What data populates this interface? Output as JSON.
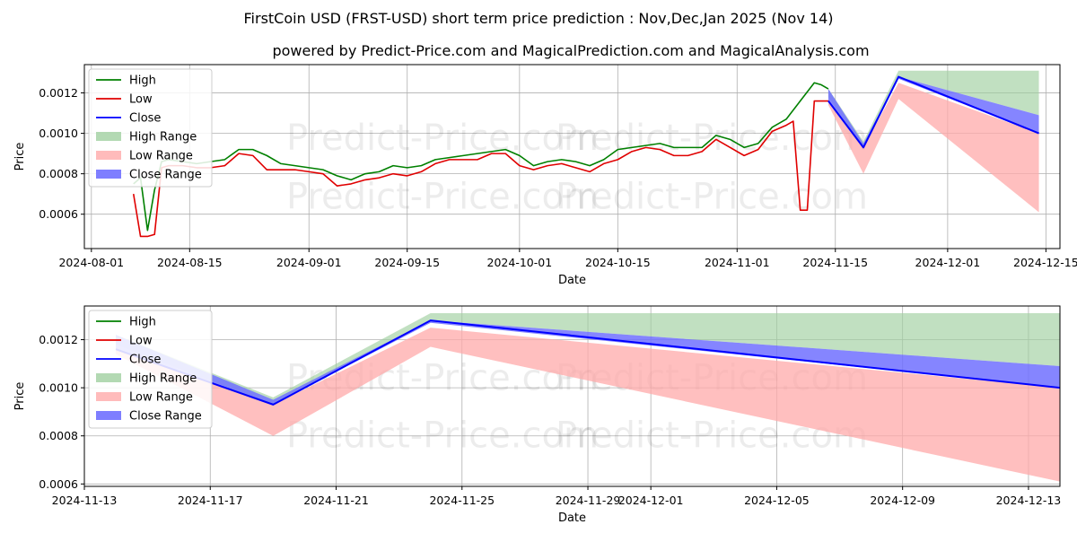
{
  "title": "FirstCoin USD (FRST-USD) short term price prediction : Nov,Dec,Jan 2025 (Nov 14)",
  "subtitle": "powered by Predict-Price.com and MagicalPrediction.com and MagicalAnalysis.com",
  "watermark": "Predict-Price.com",
  "colors": {
    "high": "#008000",
    "low": "#e00000",
    "close": "#0000ff",
    "high_range": "#a0d0a0",
    "low_range": "#ffaaaa",
    "close_range": "#7070ff"
  },
  "chart_data": [
    {
      "type": "line",
      "name": "history-and-forecast",
      "xlabel": "Date",
      "ylabel": "Price",
      "xlim": [
        "2024-07-31",
        "2024-12-17"
      ],
      "ylim": [
        0.00043,
        0.00134
      ],
      "xticks": [
        "2024-08-01",
        "2024-08-15",
        "2024-09-01",
        "2024-09-15",
        "2024-10-01",
        "2024-10-15",
        "2024-11-01",
        "2024-11-15",
        "2024-12-01",
        "2024-12-15"
      ],
      "yticks": [
        0.0006,
        0.0008,
        0.001,
        0.0012
      ],
      "legend": [
        "High",
        "Low",
        "Close",
        "High Range",
        "Low Range",
        "Close Range"
      ],
      "legend_position": "upper-left",
      "grid": true,
      "series": [
        {
          "name": "High",
          "x": [
            "2024-08-07",
            "2024-08-08",
            "2024-08-09",
            "2024-08-10",
            "2024-08-11",
            "2024-08-12",
            "2024-08-14",
            "2024-08-16",
            "2024-08-18",
            "2024-08-20",
            "2024-08-22",
            "2024-08-24",
            "2024-08-26",
            "2024-08-28",
            "2024-08-30",
            "2024-09-01",
            "2024-09-03",
            "2024-09-05",
            "2024-09-07",
            "2024-09-09",
            "2024-09-11",
            "2024-09-13",
            "2024-09-15",
            "2024-09-17",
            "2024-09-19",
            "2024-09-21",
            "2024-09-23",
            "2024-09-25",
            "2024-09-27",
            "2024-09-29",
            "2024-10-01",
            "2024-10-03",
            "2024-10-05",
            "2024-10-07",
            "2024-10-09",
            "2024-10-11",
            "2024-10-13",
            "2024-10-15",
            "2024-10-17",
            "2024-10-19",
            "2024-10-21",
            "2024-10-23",
            "2024-10-25",
            "2024-10-27",
            "2024-10-29",
            "2024-10-31",
            "2024-11-02",
            "2024-11-04",
            "2024-11-06",
            "2024-11-08",
            "2024-11-10",
            "2024-11-12",
            "2024-11-13",
            "2024-11-14"
          ],
          "values": [
            0.00075,
            0.00078,
            0.00052,
            0.00072,
            0.00086,
            0.00087,
            0.00086,
            0.00085,
            0.00086,
            0.00087,
            0.00092,
            0.00092,
            0.00089,
            0.00085,
            0.00084,
            0.00083,
            0.00082,
            0.00079,
            0.00077,
            0.0008,
            0.00081,
            0.00084,
            0.00083,
            0.00084,
            0.00087,
            0.00088,
            0.00089,
            0.0009,
            0.00091,
            0.00092,
            0.00089,
            0.00084,
            0.00086,
            0.00087,
            0.00086,
            0.00084,
            0.00087,
            0.00092,
            0.00093,
            0.00094,
            0.00095,
            0.00093,
            0.00093,
            0.00093,
            0.00099,
            0.00097,
            0.00093,
            0.00095,
            0.00103,
            0.00107,
            0.00116,
            0.00125,
            0.00124,
            0.00122
          ]
        },
        {
          "name": "Low",
          "x": [
            "2024-08-07",
            "2024-08-08",
            "2024-08-09",
            "2024-08-10",
            "2024-08-11",
            "2024-08-12",
            "2024-08-14",
            "2024-08-16",
            "2024-08-18",
            "2024-08-20",
            "2024-08-22",
            "2024-08-24",
            "2024-08-26",
            "2024-08-28",
            "2024-08-30",
            "2024-09-01",
            "2024-09-03",
            "2024-09-05",
            "2024-09-07",
            "2024-09-09",
            "2024-09-11",
            "2024-09-13",
            "2024-09-15",
            "2024-09-17",
            "2024-09-19",
            "2024-09-21",
            "2024-09-23",
            "2024-09-25",
            "2024-09-27",
            "2024-09-29",
            "2024-10-01",
            "2024-10-03",
            "2024-10-05",
            "2024-10-07",
            "2024-10-09",
            "2024-10-11",
            "2024-10-13",
            "2024-10-15",
            "2024-10-17",
            "2024-10-19",
            "2024-10-21",
            "2024-10-23",
            "2024-10-25",
            "2024-10-27",
            "2024-10-29",
            "2024-10-31",
            "2024-11-02",
            "2024-11-04",
            "2024-11-06",
            "2024-11-08",
            "2024-11-09",
            "2024-11-10",
            "2024-11-11",
            "2024-11-12",
            "2024-11-13",
            "2024-11-14"
          ],
          "values": [
            0.0007,
            0.00049,
            0.00049,
            0.0005,
            0.00083,
            0.00084,
            0.00084,
            0.00083,
            0.00083,
            0.00084,
            0.0009,
            0.00089,
            0.00082,
            0.00082,
            0.00082,
            0.00081,
            0.0008,
            0.00074,
            0.00075,
            0.00077,
            0.00078,
            0.0008,
            0.00079,
            0.00081,
            0.00085,
            0.00087,
            0.00087,
            0.00087,
            0.0009,
            0.0009,
            0.00084,
            0.00082,
            0.00084,
            0.00085,
            0.00083,
            0.00081,
            0.00085,
            0.00087,
            0.00091,
            0.00093,
            0.00092,
            0.00089,
            0.00089,
            0.00091,
            0.00097,
            0.00093,
            0.00089,
            0.00092,
            0.00101,
            0.00104,
            0.00106,
            0.00062,
            0.00062,
            0.00116,
            0.00116,
            0.00116
          ]
        },
        {
          "name": "Close",
          "x": [
            "2024-11-14",
            "2024-11-19",
            "2024-11-24",
            "2024-12-14"
          ],
          "values": [
            0.00116,
            0.00093,
            0.00128,
            0.001
          ]
        }
      ],
      "ranges": [
        {
          "name": "High Range",
          "x": [
            "2024-11-14",
            "2024-11-19",
            "2024-11-24",
            "2024-12-14"
          ],
          "upper": [
            0.00122,
            0.00096,
            0.00131,
            0.00131
          ],
          "lower": [
            0.00118,
            0.00093,
            0.00128,
            0.00109
          ]
        },
        {
          "name": "Low Range",
          "x": [
            "2024-11-14",
            "2024-11-19",
            "2024-11-24",
            "2024-12-14"
          ],
          "upper": [
            0.00116,
            0.00093,
            0.00125,
            0.001
          ],
          "lower": [
            0.00114,
            0.0008,
            0.00117,
            0.00061
          ]
        },
        {
          "name": "Close Range",
          "x": [
            "2024-11-14",
            "2024-11-19",
            "2024-11-24",
            "2024-12-14"
          ],
          "upper": [
            0.00122,
            0.00095,
            0.00128,
            0.00109
          ],
          "lower": [
            0.00116,
            0.00093,
            0.00127,
            0.001
          ]
        }
      ]
    },
    {
      "type": "line",
      "name": "forecast-zoom",
      "xlabel": "Date",
      "ylabel": "Price",
      "xlim": [
        "2024-11-13",
        "2024-12-14"
      ],
      "ylim": [
        0.00059,
        0.00134
      ],
      "xticks": [
        "2024-11-13",
        "2024-11-17",
        "2024-11-21",
        "2024-11-25",
        "2024-11-29",
        "2024-12-01",
        "2024-12-05",
        "2024-12-09",
        "2024-12-13"
      ],
      "yticks": [
        0.0006,
        0.0008,
        0.001,
        0.0012
      ],
      "legend": [
        "High",
        "Low",
        "Close",
        "High Range",
        "Low Range",
        "Close Range"
      ],
      "legend_position": "upper-left",
      "grid": true,
      "series": [
        {
          "name": "Close",
          "x": [
            "2024-11-14",
            "2024-11-19",
            "2024-11-24",
            "2024-12-14"
          ],
          "values": [
            0.00116,
            0.00093,
            0.00128,
            0.001
          ]
        }
      ],
      "ranges": [
        {
          "name": "High Range",
          "x": [
            "2024-11-14",
            "2024-11-19",
            "2024-11-24",
            "2024-12-14"
          ],
          "upper": [
            0.00122,
            0.00096,
            0.00131,
            0.00131
          ],
          "lower": [
            0.00118,
            0.00093,
            0.00128,
            0.00109
          ]
        },
        {
          "name": "Low Range",
          "x": [
            "2024-11-14",
            "2024-11-19",
            "2024-11-24",
            "2024-12-14"
          ],
          "upper": [
            0.00116,
            0.00093,
            0.00125,
            0.001
          ],
          "lower": [
            0.00114,
            0.0008,
            0.00117,
            0.00061
          ]
        },
        {
          "name": "Close Range",
          "x": [
            "2024-11-14",
            "2024-11-19",
            "2024-11-24",
            "2024-12-14"
          ],
          "upper": [
            0.00122,
            0.00095,
            0.00128,
            0.00109
          ],
          "lower": [
            0.00116,
            0.00093,
            0.00127,
            0.001
          ]
        }
      ]
    }
  ]
}
